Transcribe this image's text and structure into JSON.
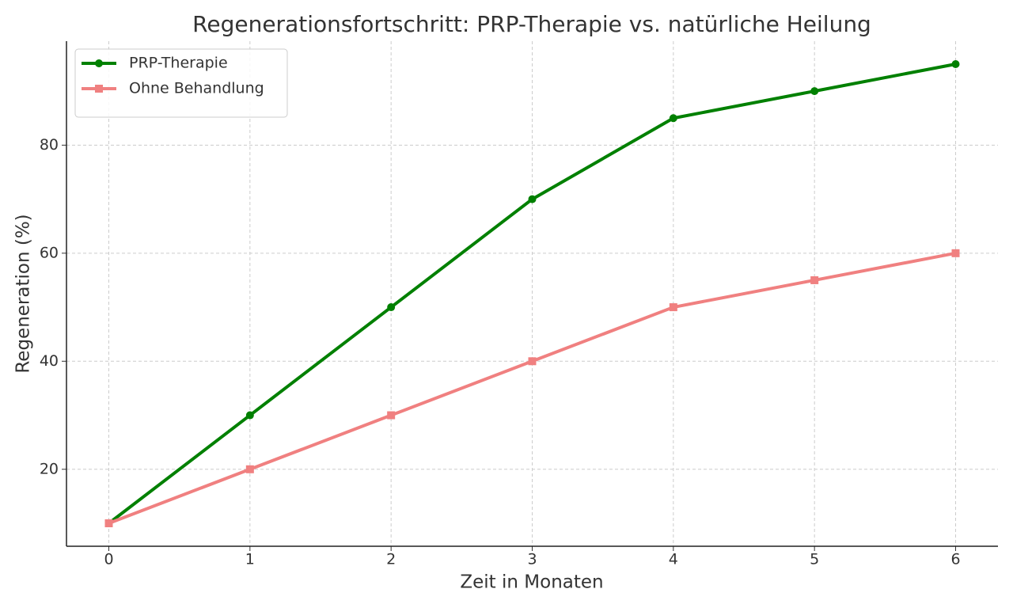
{
  "chart_data": {
    "type": "line",
    "title": "Regenerationsfortschritt: PRP-Therapie vs. natürliche Heilung",
    "x_label": "Zeit in Monaten",
    "y_label": "Regeneration (%)",
    "x": [
      0,
      1,
      2,
      3,
      4,
      5,
      6
    ],
    "series": [
      {
        "name": "PRP-Therapie",
        "color": "#008000",
        "marker": "circle",
        "values": [
          10,
          30,
          50,
          70,
          85,
          90,
          95
        ]
      },
      {
        "name": "Ohne Behandlung",
        "color": "#f08080",
        "marker": "square",
        "values": [
          10,
          20,
          30,
          40,
          50,
          55,
          60
        ]
      }
    ],
    "xlim": [
      -0.3,
      6.3
    ],
    "xticks": [
      0,
      1,
      2,
      3,
      4,
      5,
      6
    ],
    "ylim": [
      5.75,
      99.25
    ],
    "yticks": [
      20,
      40,
      60,
      80
    ],
    "grid": true,
    "legend": "upper left"
  }
}
